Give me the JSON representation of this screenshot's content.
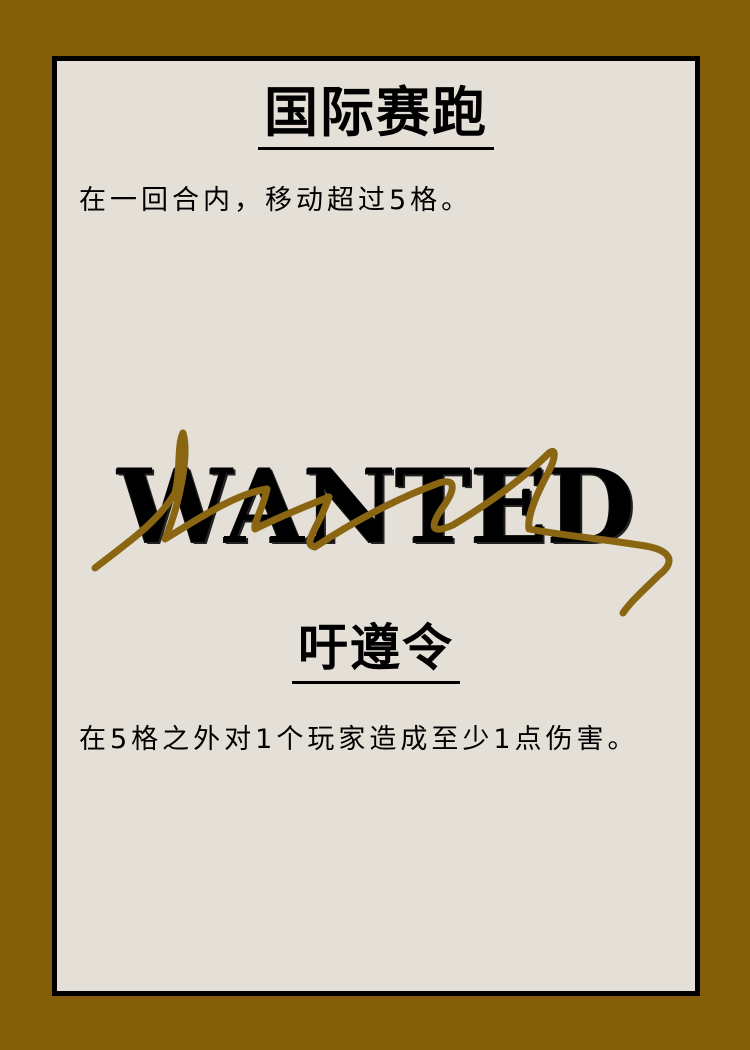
{
  "card": {
    "title": "国际赛跑",
    "description": "在一回合内，移动超过5格。",
    "stamp_text": "WANTED",
    "subtitle": "吁遵令",
    "objective": "在5格之外对1个玩家造成至少1点伤害。"
  },
  "colors": {
    "background": "#845e08",
    "card_paper": "#e4e0d7",
    "border": "#000000",
    "signature": "#8a6512"
  },
  "icons": {
    "signature": "scribble-signature-icon"
  }
}
